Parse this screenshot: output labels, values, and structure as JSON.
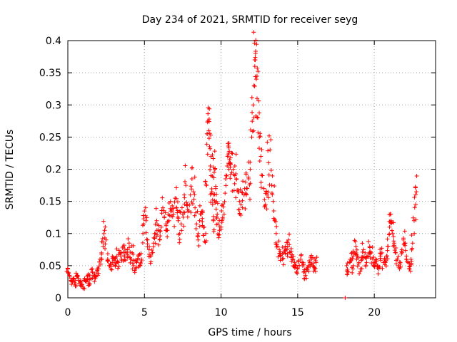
{
  "chart_data": {
    "type": "scatter",
    "title": "Day 234 of 2021, SRMTID for receiver seyg",
    "xlabel": "GPS time / hours",
    "ylabel": "SRMTID / TECUs",
    "xlim": [
      0,
      24
    ],
    "ylim": [
      0,
      0.4
    ],
    "xticks": [
      0,
      5,
      10,
      15,
      20
    ],
    "xtick_labels": [
      "0",
      "5",
      "10",
      "15",
      "20"
    ],
    "yticks": [
      0,
      0.05,
      0.1,
      0.15,
      0.2,
      0.25,
      0.3,
      0.35,
      0.4
    ],
    "ytick_labels": [
      "0",
      "0.05",
      "0.1",
      "0.15",
      "0.2",
      "0.25",
      "0.3",
      "0.35",
      "0.4"
    ],
    "grid": true,
    "marker": "plus",
    "color": "#ff0000",
    "series": [
      {
        "name": "SRMTID",
        "points": [
          [
            0.0,
            0.045
          ],
          [
            0.1,
            0.035
          ],
          [
            0.2,
            0.03
          ],
          [
            0.3,
            0.025
          ],
          [
            0.4,
            0.03
          ],
          [
            0.5,
            0.02
          ],
          [
            0.6,
            0.035
          ],
          [
            0.7,
            0.03
          ],
          [
            0.8,
            0.025
          ],
          [
            0.9,
            0.02
          ],
          [
            1.0,
            0.015
          ],
          [
            1.1,
            0.03
          ],
          [
            1.2,
            0.025
          ],
          [
            1.3,
            0.035
          ],
          [
            1.4,
            0.02
          ],
          [
            1.5,
            0.03
          ],
          [
            1.6,
            0.04
          ],
          [
            1.7,
            0.035
          ],
          [
            1.8,
            0.03
          ],
          [
            1.9,
            0.04
          ],
          [
            2.0,
            0.045
          ],
          [
            2.1,
            0.06
          ],
          [
            2.2,
            0.07
          ],
          [
            2.3,
            0.08
          ],
          [
            2.4,
            0.105
          ],
          [
            2.5,
            0.09
          ],
          [
            2.6,
            0.06
          ],
          [
            2.7,
            0.05
          ],
          [
            2.8,
            0.045
          ],
          [
            2.9,
            0.055
          ],
          [
            3.0,
            0.06
          ],
          [
            3.1,
            0.05
          ],
          [
            3.2,
            0.065
          ],
          [
            3.3,
            0.055
          ],
          [
            3.4,
            0.07
          ],
          [
            3.5,
            0.06
          ],
          [
            3.6,
            0.08
          ],
          [
            3.7,
            0.065
          ],
          [
            3.8,
            0.07
          ],
          [
            3.9,
            0.075
          ],
          [
            4.0,
            0.085
          ],
          [
            4.1,
            0.06
          ],
          [
            4.2,
            0.07
          ],
          [
            4.3,
            0.05
          ],
          [
            4.4,
            0.045
          ],
          [
            4.5,
            0.055
          ],
          [
            4.6,
            0.065
          ],
          [
            4.7,
            0.05
          ],
          [
            4.8,
            0.06
          ],
          [
            4.9,
            0.1
          ],
          [
            5.0,
            0.135
          ],
          [
            5.1,
            0.12
          ],
          [
            5.2,
            0.09
          ],
          [
            5.3,
            0.075
          ],
          [
            5.4,
            0.065
          ],
          [
            5.5,
            0.07
          ],
          [
            5.6,
            0.085
          ],
          [
            5.7,
            0.1
          ],
          [
            5.8,
            0.12
          ],
          [
            5.9,
            0.105
          ],
          [
            6.0,
            0.09
          ],
          [
            6.1,
            0.11
          ],
          [
            6.2,
            0.14
          ],
          [
            6.3,
            0.125
          ],
          [
            6.4,
            0.115
          ],
          [
            6.5,
            0.105
          ],
          [
            6.6,
            0.12
          ],
          [
            6.7,
            0.15
          ],
          [
            6.8,
            0.135
          ],
          [
            6.9,
            0.13
          ],
          [
            7.0,
            0.155
          ],
          [
            7.1,
            0.14
          ],
          [
            7.2,
            0.12
          ],
          [
            7.3,
            0.1
          ],
          [
            7.4,
            0.115
          ],
          [
            7.5,
            0.13
          ],
          [
            7.6,
            0.16
          ],
          [
            7.7,
            0.175
          ],
          [
            7.8,
            0.145
          ],
          [
            7.9,
            0.135
          ],
          [
            8.0,
            0.16
          ],
          [
            8.1,
            0.185
          ],
          [
            8.2,
            0.165
          ],
          [
            8.3,
            0.14
          ],
          [
            8.4,
            0.115
          ],
          [
            8.5,
            0.09
          ],
          [
            8.6,
            0.12
          ],
          [
            8.7,
            0.13
          ],
          [
            8.8,
            0.135
          ],
          [
            8.9,
            0.11
          ],
          [
            9.0,
            0.1
          ],
          [
            9.05,
            0.175
          ],
          [
            9.1,
            0.255
          ],
          [
            9.15,
            0.275
          ],
          [
            9.2,
            0.26
          ],
          [
            9.25,
            0.235
          ],
          [
            9.3,
            0.205
          ],
          [
            9.35,
            0.19
          ],
          [
            9.4,
            0.165
          ],
          [
            9.45,
            0.145
          ],
          [
            9.5,
            0.12
          ],
          [
            9.55,
            0.195
          ],
          [
            9.6,
            0.2
          ],
          [
            9.65,
            0.17
          ],
          [
            9.7,
            0.15
          ],
          [
            9.75,
            0.13
          ],
          [
            9.8,
            0.115
          ],
          [
            9.9,
            0.105
          ],
          [
            10.0,
            0.11
          ],
          [
            10.1,
            0.125
          ],
          [
            10.2,
            0.13
          ],
          [
            10.3,
            0.185
          ],
          [
            10.4,
            0.205
          ],
          [
            10.45,
            0.24
          ],
          [
            10.5,
            0.225
          ],
          [
            10.55,
            0.215
          ],
          [
            10.6,
            0.21
          ],
          [
            10.7,
            0.195
          ],
          [
            10.8,
            0.2
          ],
          [
            10.9,
            0.205
          ],
          [
            11.0,
            0.185
          ],
          [
            11.1,
            0.165
          ],
          [
            11.2,
            0.15
          ],
          [
            11.3,
            0.145
          ],
          [
            11.4,
            0.14
          ],
          [
            11.5,
            0.16
          ],
          [
            11.6,
            0.18
          ],
          [
            11.7,
            0.17
          ],
          [
            11.8,
            0.185
          ],
          [
            11.9,
            0.2
          ],
          [
            12.0,
            0.25
          ],
          [
            12.1,
            0.3
          ],
          [
            12.15,
            0.33
          ],
          [
            12.2,
            0.36
          ],
          [
            12.25,
            0.38
          ],
          [
            12.3,
            0.34
          ],
          [
            12.35,
            0.31
          ],
          [
            12.4,
            0.28
          ],
          [
            12.5,
            0.25
          ],
          [
            12.6,
            0.22
          ],
          [
            12.7,
            0.19
          ],
          [
            12.8,
            0.17
          ],
          [
            12.9,
            0.145
          ],
          [
            13.0,
            0.16
          ],
          [
            13.1,
            0.21
          ],
          [
            13.2,
            0.23
          ],
          [
            13.3,
            0.175
          ],
          [
            13.4,
            0.15
          ],
          [
            13.5,
            0.12
          ],
          [
            13.6,
            0.1
          ],
          [
            13.7,
            0.08
          ],
          [
            13.8,
            0.075
          ],
          [
            13.9,
            0.065
          ],
          [
            14.0,
            0.06
          ],
          [
            14.1,
            0.07
          ],
          [
            14.2,
            0.08
          ],
          [
            14.3,
            0.075
          ],
          [
            14.4,
            0.09
          ],
          [
            14.5,
            0.07
          ],
          [
            14.6,
            0.065
          ],
          [
            14.7,
            0.06
          ],
          [
            14.8,
            0.055
          ],
          [
            14.9,
            0.05
          ],
          [
            15.0,
            0.045
          ],
          [
            15.1,
            0.05
          ],
          [
            15.2,
            0.06
          ],
          [
            15.3,
            0.055
          ],
          [
            15.4,
            0.04
          ],
          [
            15.5,
            0.035
          ],
          [
            15.6,
            0.045
          ],
          [
            15.7,
            0.05
          ],
          [
            15.8,
            0.055
          ],
          [
            15.9,
            0.06
          ],
          [
            16.0,
            0.05
          ],
          [
            16.1,
            0.045
          ],
          [
            16.2,
            0.055
          ],
          [
            18.1,
            0.0
          ],
          [
            18.2,
            0.05
          ],
          [
            18.3,
            0.04
          ],
          [
            18.4,
            0.055
          ],
          [
            18.5,
            0.06
          ],
          [
            18.6,
            0.045
          ],
          [
            18.7,
            0.07
          ],
          [
            18.8,
            0.08
          ],
          [
            18.9,
            0.065
          ],
          [
            19.0,
            0.055
          ],
          [
            19.1,
            0.045
          ],
          [
            19.2,
            0.06
          ],
          [
            19.3,
            0.075
          ],
          [
            19.4,
            0.07
          ],
          [
            19.5,
            0.055
          ],
          [
            19.6,
            0.065
          ],
          [
            19.7,
            0.08
          ],
          [
            19.8,
            0.07
          ],
          [
            19.9,
            0.06
          ],
          [
            20.0,
            0.055
          ],
          [
            20.1,
            0.06
          ],
          [
            20.2,
            0.05
          ],
          [
            20.3,
            0.045
          ],
          [
            20.4,
            0.065
          ],
          [
            20.5,
            0.07
          ],
          [
            20.6,
            0.055
          ],
          [
            20.7,
            0.06
          ],
          [
            20.8,
            0.065
          ],
          [
            20.9,
            0.08
          ],
          [
            21.0,
            0.11
          ],
          [
            21.05,
            0.13
          ],
          [
            21.1,
            0.12
          ],
          [
            21.2,
            0.1
          ],
          [
            21.3,
            0.085
          ],
          [
            21.4,
            0.07
          ],
          [
            21.5,
            0.06
          ],
          [
            21.6,
            0.05
          ],
          [
            21.7,
            0.055
          ],
          [
            21.8,
            0.075
          ],
          [
            21.9,
            0.09
          ],
          [
            22.0,
            0.085
          ],
          [
            22.1,
            0.065
          ],
          [
            22.2,
            0.055
          ],
          [
            22.3,
            0.045
          ],
          [
            22.4,
            0.06
          ],
          [
            22.5,
            0.085
          ],
          [
            22.6,
            0.12
          ],
          [
            22.7,
            0.145
          ],
          [
            22.75,
            0.165
          ]
        ]
      }
    ]
  }
}
